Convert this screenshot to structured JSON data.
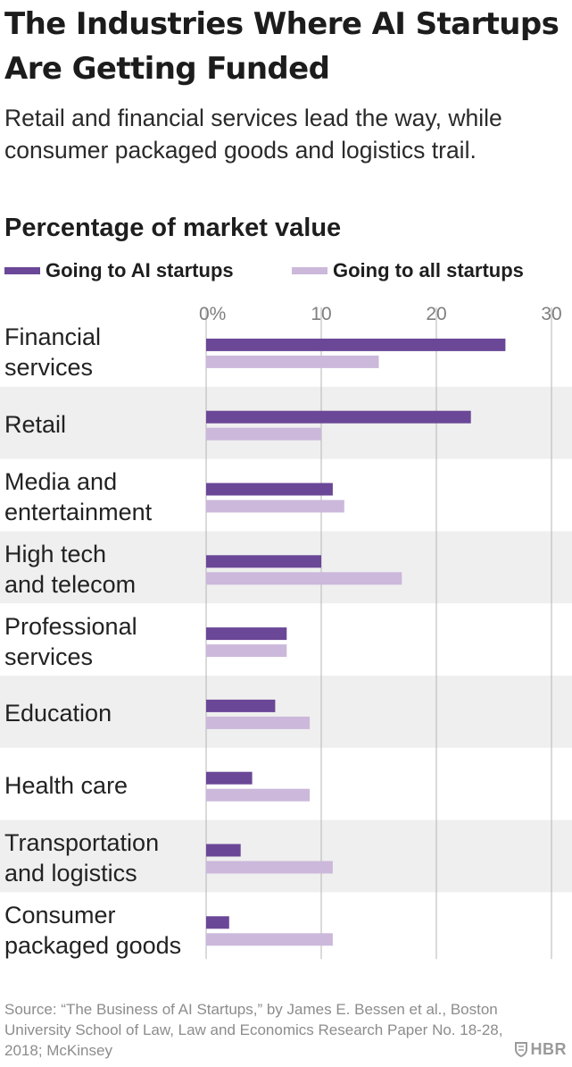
{
  "title": "The Industries Where AI Startups Are Getting Funded",
  "subtitle": "Retail and financial services lead the way, while consumer packaged goods and logistics trail.",
  "chart_heading": "Percentage of market value",
  "source": "Source: “The Business of AI Startups,” by James E. Bessen et al., Boston University School of Law, Law and Economics Research Paper No. 18-28, 2018; McKinsey",
  "brand": {
    "icon": "shield-icon",
    "text": "HBR"
  },
  "colors": {
    "ai": "#6a4797",
    "all": "#cbb8db",
    "band": "#efefef",
    "axis": "#b5b5b5"
  },
  "chart_data": {
    "type": "bar",
    "orientation": "horizontal",
    "ylabel": "Percentage of market value",
    "xlim": [
      0,
      30
    ],
    "x_ticks": [
      0,
      10,
      20,
      30
    ],
    "x_tick_labels": [
      "0%",
      "10",
      "20",
      "30"
    ],
    "categories": [
      "Financial\nservices",
      "Retail",
      "Media and\nentertainment",
      "High tech\nand telecom",
      "Professional\nservices",
      "Education",
      "Health care",
      "Transportation\nand logistics",
      "Consumer\npackaged goods"
    ],
    "series": [
      {
        "name": "Going to AI startups",
        "color": "#6a4797",
        "values": [
          26,
          23,
          11,
          10,
          7,
          6,
          4,
          3,
          2
        ]
      },
      {
        "name": "Going to all startups",
        "color": "#cbb8db",
        "values": [
          15,
          10,
          12,
          17,
          7,
          9,
          9,
          11,
          11
        ]
      }
    ],
    "alternating_row_bands": true,
    "legend_position": "top-left"
  }
}
